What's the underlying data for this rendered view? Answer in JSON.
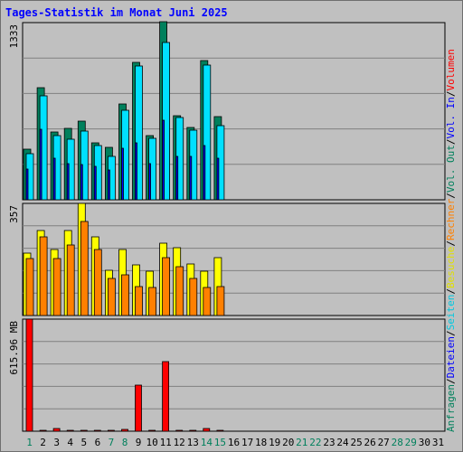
{
  "title": "Tages-Statistik im Monat Juni 2025",
  "colors": {
    "anfragen": "#00805c",
    "dateien": "#0000ff",
    "seiten": "#00e0ff",
    "besuche": "#ffff00",
    "rechner": "#ff8000",
    "kbytes": "#ff0000",
    "weekday_label": "#000000",
    "weekend_label": "#00805c",
    "frame": "#c0c0c0",
    "grid": "#808080"
  },
  "right_legend": [
    {
      "text": "Anfragen",
      "color": "#00805c"
    },
    {
      "text": "/",
      "color": "#000000"
    },
    {
      "text": "Dateien",
      "color": "#0000ff"
    },
    {
      "text": "/",
      "color": "#000000"
    },
    {
      "text": "Seiten",
      "color": "#00c8e0"
    },
    {
      "text": "/",
      "color": "#000000"
    },
    {
      "text": "Besuche",
      "color": "#e0e000"
    },
    {
      "text": "/",
      "color": "#000000"
    },
    {
      "text": "Rechner",
      "color": "#ff8000"
    },
    {
      "text": "/",
      "color": "#000000"
    },
    {
      "text": "Vol. Out",
      "color": "#00805c"
    },
    {
      "text": "/",
      "color": "#000000"
    },
    {
      "text": "Vol. In",
      "color": "#0000ff"
    },
    {
      "text": "/",
      "color": "#000000"
    },
    {
      "text": "Volumen",
      "color": "#ff0000"
    }
  ],
  "chart_data": {
    "type": "bar",
    "categories": [
      "1",
      "2",
      "3",
      "4",
      "5",
      "6",
      "7",
      "8",
      "9",
      "10",
      "11",
      "12",
      "13",
      "14",
      "15",
      "16",
      "17",
      "18",
      "19",
      "20",
      "21",
      "22",
      "23",
      "24",
      "25",
      "26",
      "27",
      "28",
      "29",
      "30",
      "31"
    ],
    "weekend_days": [
      "1",
      "7",
      "8",
      "14",
      "15",
      "21",
      "22",
      "28",
      "29"
    ],
    "panels": [
      {
        "max_label": "1333",
        "ymax": 1333,
        "series": [
          {
            "name": "Anfragen",
            "color": "#00805c",
            "values": [
              380,
              845,
              510,
              535,
              595,
              430,
              395,
              720,
              1035,
              480,
              1340,
              630,
              545,
              1050,
              625
            ]
          },
          {
            "name": "Seiten",
            "color": "#00e0ff",
            "values": [
              345,
              785,
              480,
              455,
              515,
              410,
              325,
              675,
              1005,
              465,
              1185,
              620,
              525,
              1015,
              560
            ]
          },
          {
            "name": "Dateien",
            "color": "#0000ff",
            "values": [
              230,
              530,
              310,
              270,
              265,
              250,
              225,
              385,
              430,
              270,
              600,
              325,
              325,
              410,
              315
            ]
          }
        ]
      },
      {
        "max_label": "357",
        "ymax": 357,
        "series": [
          {
            "name": "Besuche",
            "color": "#ffff00",
            "values": [
              200,
              270,
              210,
              270,
              357,
              250,
              145,
              210,
              160,
              140,
              230,
              215,
              165,
              140,
              185
            ]
          },
          {
            "name": "Rechner",
            "color": "#ff8000",
            "values": [
              180,
              250,
              180,
              225,
              300,
              210,
              118,
              130,
              93,
              88,
              185,
              155,
              118,
              90,
              92
            ]
          }
        ]
      },
      {
        "max_label": "615.96 MB",
        "ymax": 615.96,
        "series": [
          {
            "name": "Volumen",
            "color": "#ff0000",
            "values": [
              615.96,
              3,
              14,
              4,
              4,
              4,
              4,
              9,
              253,
              4,
              384,
              5,
              5,
              16,
              5
            ]
          }
        ]
      }
    ]
  }
}
